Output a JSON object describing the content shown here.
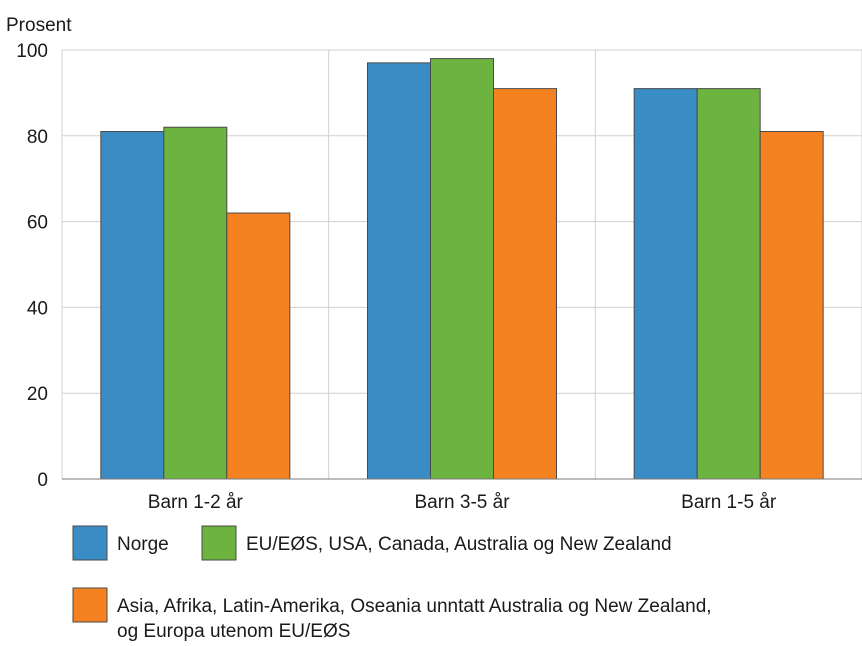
{
  "chart_data": {
    "type": "bar",
    "ylabel": "Prosent",
    "ylim": [
      0,
      100
    ],
    "yticks": [
      0,
      20,
      40,
      60,
      80,
      100
    ],
    "categories": [
      "Barn 1-2 år",
      "Barn 3-5 år",
      "Barn 1-5 år"
    ],
    "series": [
      {
        "name": "Norge",
        "color": "#3a8cc4",
        "values": [
          81,
          97,
          91
        ]
      },
      {
        "name": "EU/EØS, USA, Canada, Australia og New Zealand",
        "color": "#6db33f",
        "values": [
          82,
          98,
          91
        ]
      },
      {
        "name": "Asia, Afrika, Latin-Amerika, Oseania unntatt Australia og New Zealand,\nog Europa utenom EU/EØS",
        "color": "#f58220",
        "values": [
          62,
          91,
          81
        ]
      }
    ],
    "grid": true,
    "legend_position": "bottom"
  }
}
